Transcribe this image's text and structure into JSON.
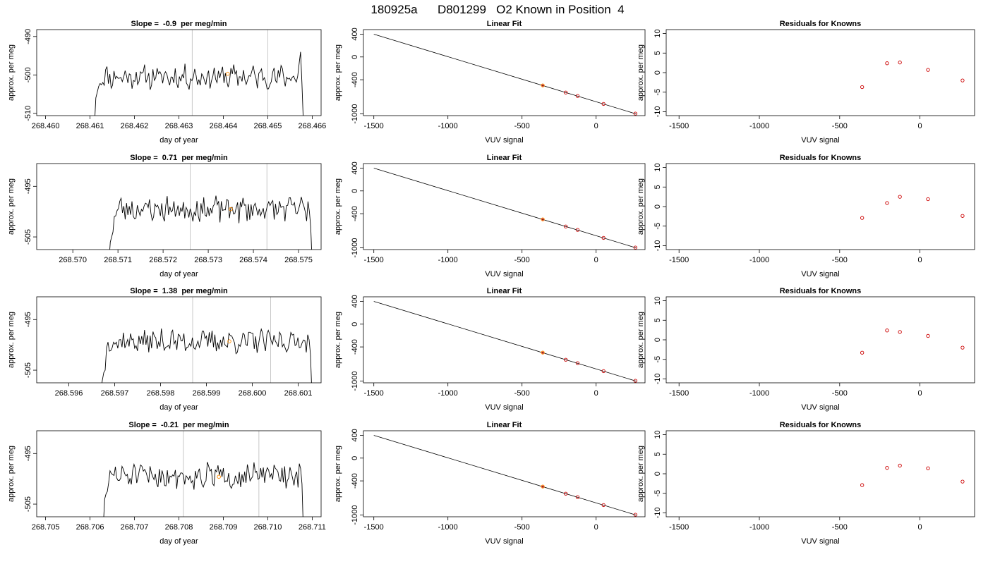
{
  "figure": {
    "title": "180925a      D801299   O2 Known in Position  4"
  },
  "colors": {
    "trace": "#000000",
    "marker_highlight": "#ff8c00",
    "marker_known": "#cc0000",
    "vline": "#c8c8c8",
    "fit_line": "#000000"
  },
  "chart_data": [
    {
      "type": "line",
      "title": "Slope =  -0.9  per meg/min",
      "xlabel": "day of year",
      "ylabel": "approx. per meg",
      "xlim": [
        268.4598,
        268.4662
      ],
      "ylim": [
        -510.6,
        -488.2
      ],
      "xticks": [
        "268.460",
        "268.461",
        "268.462",
        "268.463",
        "268.464",
        "268.465",
        "268.466"
      ],
      "yticks": [
        "-490",
        "-500",
        "-510"
      ],
      "vlines": [
        268.4633,
        268.465
      ],
      "trace": {
        "x_start": 268.4611,
        "x_end": 268.4658,
        "base": -500.5,
        "noise": 2.6,
        "seed": 11,
        "head": [
          -513,
          -506,
          -504.5,
          -503
        ],
        "tail": [
          -497,
          -494,
          -502,
          -512
        ]
      },
      "marker": {
        "x": 268.4641,
        "y": -499.7
      }
    },
    {
      "type": "scatter",
      "title": "Linear Fit",
      "xlabel": "VUV signal",
      "ylabel": "approx. per meg",
      "xlim": [
        -1570,
        330
      ],
      "ylim": [
        -1030,
        480
      ],
      "xticks": [
        -1500,
        -1000,
        -500,
        0
      ],
      "yticks": [
        400,
        0,
        -400,
        -1000
      ],
      "fit_line": {
        "x1": -1500,
        "y1": 400,
        "x2": 270,
        "y2": -1000
      },
      "points": [
        {
          "x": -360,
          "y": -500,
          "role": "highlight"
        },
        {
          "x": -205,
          "y": -625,
          "role": "known"
        },
        {
          "x": -125,
          "y": -685,
          "role": "known"
        },
        {
          "x": 50,
          "y": -825,
          "role": "known"
        },
        {
          "x": 265,
          "y": -995,
          "role": "known"
        }
      ]
    },
    {
      "type": "scatter",
      "title": "Residuals for Knowns",
      "xlabel": "VUV signal",
      "ylabel": "approx. per meg",
      "xlim": [
        -1580,
        340
      ],
      "ylim": [
        -11,
        11
      ],
      "xticks": [
        -1500,
        -1000,
        -500,
        0
      ],
      "yticks": [
        10,
        5,
        0,
        -5,
        -10
      ],
      "points": [
        {
          "x": -360,
          "y": -3.7
        },
        {
          "x": -205,
          "y": 2.4
        },
        {
          "x": -125,
          "y": 2.6
        },
        {
          "x": 50,
          "y": 0.7
        },
        {
          "x": 265,
          "y": -2.0
        }
      ]
    },
    {
      "type": "line",
      "title": "Slope =  0.71  per meg/min",
      "xlabel": "day of year",
      "ylabel": "approx. per meg",
      "xlim": [
        268.5692,
        268.5755
      ],
      "ylim": [
        -507.5,
        -490.5
      ],
      "xticks": [
        "268.570",
        "268.571",
        "268.572",
        "268.573",
        "268.574",
        "268.575"
      ],
      "yticks": [
        "-495",
        "-505"
      ],
      "vlines": [
        268.5726,
        268.5743
      ],
      "trace": {
        "x_start": 268.5708,
        "x_end": 268.5753,
        "base": -499.5,
        "noise": 2.2,
        "seed": 23,
        "head": [
          -510,
          -506,
          -505,
          -504
        ],
        "tail": [
          -498,
          -500,
          -503,
          -510
        ]
      },
      "marker": {
        "x": 268.5735,
        "y": -499.5
      }
    },
    {
      "type": "scatter",
      "title": "Linear Fit",
      "xlabel": "VUV signal",
      "ylabel": "approx. per meg",
      "xlim": [
        -1570,
        330
      ],
      "ylim": [
        -1030,
        480
      ],
      "xticks": [
        -1500,
        -1000,
        -500,
        0
      ],
      "yticks": [
        400,
        0,
        -400,
        -1000
      ],
      "fit_line": {
        "x1": -1500,
        "y1": 400,
        "x2": 270,
        "y2": -1000
      },
      "points": [
        {
          "x": -360,
          "y": -500,
          "role": "highlight"
        },
        {
          "x": -205,
          "y": -625,
          "role": "known"
        },
        {
          "x": -125,
          "y": -685,
          "role": "known"
        },
        {
          "x": 50,
          "y": -825,
          "role": "known"
        },
        {
          "x": 265,
          "y": -995,
          "role": "known"
        }
      ]
    },
    {
      "type": "scatter",
      "title": "Residuals for Knowns",
      "xlabel": "VUV signal",
      "ylabel": "approx. per meg",
      "xlim": [
        -1580,
        340
      ],
      "ylim": [
        -11,
        11
      ],
      "xticks": [
        -1500,
        -1000,
        -500,
        0
      ],
      "yticks": [
        10,
        5,
        0,
        -5,
        -10
      ],
      "points": [
        {
          "x": -360,
          "y": -2.9
        },
        {
          "x": -205,
          "y": 0.9
        },
        {
          "x": -125,
          "y": 2.5
        },
        {
          "x": 50,
          "y": 1.9
        },
        {
          "x": 265,
          "y": -2.4
        }
      ]
    },
    {
      "type": "line",
      "title": "Slope =  1.38  per meg/min",
      "xlabel": "day of year",
      "ylabel": "approx. per meg",
      "xlim": [
        268.5953,
        268.6015
      ],
      "ylim": [
        -507.5,
        -490.5
      ],
      "xticks": [
        "268.596",
        "268.597",
        "268.598",
        "268.599",
        "268.600",
        "268.601"
      ],
      "yticks": [
        "-495",
        "-505"
      ],
      "vlines": [
        268.5987,
        268.6004
      ],
      "trace": {
        "x_start": 268.5967,
        "x_end": 268.6013,
        "base": -499.3,
        "noise": 2.0,
        "seed": 37,
        "head": [
          -509,
          -507,
          -505.5,
          -505
        ],
        "tail": [
          -498,
          -499,
          -502,
          -510
        ]
      },
      "marker": {
        "x": 268.5995,
        "y": -499.3
      }
    },
    {
      "type": "scatter",
      "title": "Linear Fit",
      "xlabel": "VUV signal",
      "ylabel": "approx. per meg",
      "xlim": [
        -1570,
        330
      ],
      "ylim": [
        -1030,
        480
      ],
      "xticks": [
        -1500,
        -1000,
        -500,
        0
      ],
      "yticks": [
        400,
        0,
        -400,
        -1000
      ],
      "fit_line": {
        "x1": -1500,
        "y1": 400,
        "x2": 270,
        "y2": -1000
      },
      "points": [
        {
          "x": -360,
          "y": -500,
          "role": "highlight"
        },
        {
          "x": -205,
          "y": -625,
          "role": "known"
        },
        {
          "x": -125,
          "y": -685,
          "role": "known"
        },
        {
          "x": 50,
          "y": -825,
          "role": "known"
        },
        {
          "x": 265,
          "y": -995,
          "role": "known"
        }
      ]
    },
    {
      "type": "scatter",
      "title": "Residuals for Knowns",
      "xlabel": "VUV signal",
      "ylabel": "approx. per meg",
      "xlim": [
        -1580,
        340
      ],
      "ylim": [
        -11,
        11
      ],
      "xticks": [
        -1500,
        -1000,
        -500,
        0
      ],
      "yticks": [
        10,
        5,
        0,
        -5,
        -10
      ],
      "points": [
        {
          "x": -360,
          "y": -3.3
        },
        {
          "x": -205,
          "y": 2.4
        },
        {
          "x": -125,
          "y": 2.0
        },
        {
          "x": 50,
          "y": 1.0
        },
        {
          "x": 265,
          "y": -2.0
        }
      ]
    },
    {
      "type": "line",
      "title": "Slope =  -0.21  per meg/min",
      "xlabel": "day of year",
      "ylabel": "approx. per meg",
      "xlim": [
        268.7048,
        268.7112
      ],
      "ylim": [
        -507.5,
        -490.5
      ],
      "xticks": [
        "268.705",
        "268.706",
        "268.707",
        "268.708",
        "268.709",
        "268.710",
        "268.711"
      ],
      "yticks": [
        "-495",
        "-505"
      ],
      "vlines": [
        268.7081,
        268.7098
      ],
      "trace": {
        "x_start": 268.7063,
        "x_end": 268.7108,
        "base": -499.4,
        "noise": 2.1,
        "seed": 51,
        "head": [
          -509,
          -504,
          -503,
          -502.5
        ],
        "tail": [
          -497,
          -498,
          -501,
          -510
        ]
      },
      "marker": {
        "x": 268.7089,
        "y": -499.6
      }
    },
    {
      "type": "scatter",
      "title": "Linear Fit",
      "xlabel": "VUV signal",
      "ylabel": "approx. per meg",
      "xlim": [
        -1570,
        330
      ],
      "ylim": [
        -1030,
        480
      ],
      "xticks": [
        -1500,
        -1000,
        -500,
        0
      ],
      "yticks": [
        400,
        0,
        -400,
        -1000
      ],
      "fit_line": {
        "x1": -1500,
        "y1": 400,
        "x2": 270,
        "y2": -1000
      },
      "points": [
        {
          "x": -360,
          "y": -500,
          "role": "highlight"
        },
        {
          "x": -205,
          "y": -625,
          "role": "known"
        },
        {
          "x": -125,
          "y": -685,
          "role": "known"
        },
        {
          "x": 50,
          "y": -825,
          "role": "known"
        },
        {
          "x": 265,
          "y": -995,
          "role": "known"
        }
      ]
    },
    {
      "type": "scatter",
      "title": "Residuals for Knowns",
      "xlabel": "VUV signal",
      "ylabel": "approx. per meg",
      "xlim": [
        -1580,
        340
      ],
      "ylim": [
        -11,
        11
      ],
      "xticks": [
        -1500,
        -1000,
        -500,
        0
      ],
      "yticks": [
        10,
        5,
        0,
        -5,
        -10
      ],
      "points": [
        {
          "x": -360,
          "y": -2.9
        },
        {
          "x": -205,
          "y": 1.5
        },
        {
          "x": -125,
          "y": 2.1
        },
        {
          "x": 50,
          "y": 1.4
        },
        {
          "x": 265,
          "y": -2.0
        }
      ]
    }
  ]
}
